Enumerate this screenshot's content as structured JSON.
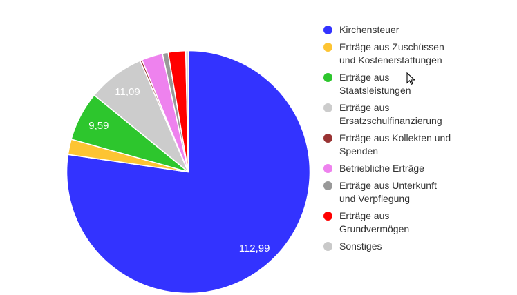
{
  "window": {
    "background_color": "#ffffff"
  },
  "chart_data": {
    "type": "pie",
    "title": "",
    "legend_position": "right",
    "direction": "clockwise",
    "start_angle_deg": 0,
    "grid": false,
    "total": 146.17,
    "label_color": "#ffffff",
    "slices": [
      {
        "name": "Kirchensteuer",
        "value": 112.99,
        "value_label": "112,99",
        "color": "#3333ff"
      },
      {
        "name": "Erträge aus Zuschüssen und Kostenerstattungen",
        "value": 3.0,
        "value_label": "",
        "color": "#fdc433"
      },
      {
        "name": "Erträge aus Staatsleistungen",
        "value": 9.59,
        "value_label": "9,59",
        "color": "#2dc62d"
      },
      {
        "name": "Erträge aus Ersatzschulfinanzierung",
        "value": 11.09,
        "value_label": "11,09",
        "color": "#cccccc"
      },
      {
        "name": "Erträge aus Kollekten und Spenden",
        "value": 0.4,
        "value_label": "",
        "color": "#993333"
      },
      {
        "name": "Betriebliche Erträge",
        "value": 4.1,
        "value_label": "",
        "color": "#ee82ee"
      },
      {
        "name": "Erträge aus Unterkunft und Verpflegung",
        "value": 1.1,
        "value_label": "",
        "color": "#999999"
      },
      {
        "name": "Erträge aus Grundvermögen",
        "value": 3.4,
        "value_label": "",
        "color": "#ff0000"
      },
      {
        "name": "Sonstiges",
        "value": 0.5,
        "value_label": "",
        "color": "#c9c9c9"
      }
    ]
  },
  "legend": {
    "items": [
      {
        "label": "Kirchensteuer",
        "color": "#3333ff"
      },
      {
        "label": "Erträge aus Zuschüssen\nund Kostenerstattungen",
        "color": "#fdc433"
      },
      {
        "label": "Erträge aus\nStaatsleistungen",
        "color": "#2dc62d"
      },
      {
        "label": "Erträge aus\nErsatzschulfinanzierung",
        "color": "#cccccc"
      },
      {
        "label": "Erträge aus Kollekten und\nSpenden",
        "color": "#993333"
      },
      {
        "label": "Betriebliche Erträge",
        "color": "#ee82ee"
      },
      {
        "label": "Erträge aus Unterkunft\nund Verpflegung",
        "color": "#999999"
      },
      {
        "label": "Erträge aus\nGrundvermögen",
        "color": "#ff0000"
      },
      {
        "label": "Sonstiges",
        "color": "#c9c9c9"
      }
    ]
  }
}
